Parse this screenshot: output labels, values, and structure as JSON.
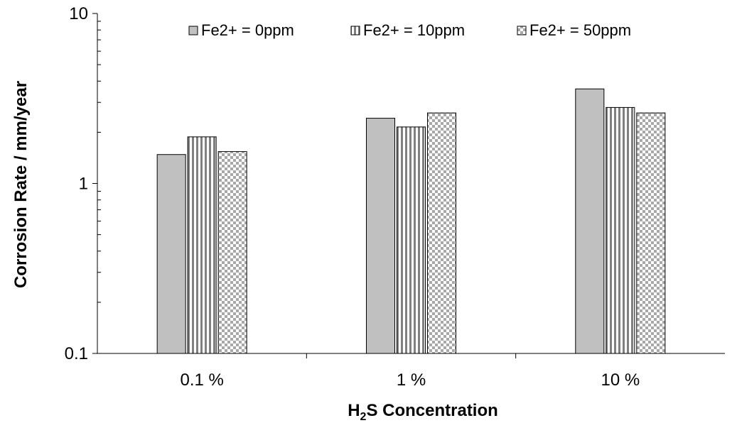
{
  "chart_data": {
    "type": "bar",
    "title": "",
    "xlabel": {
      "main": "H",
      "sub": "2",
      "rest": "S Concentration"
    },
    "ylabel": "Corrosion Rate / mm/year",
    "yscale": "log",
    "ylim": [
      0.1,
      10
    ],
    "yticks": [
      {
        "value": 0.1,
        "label": "0.1"
      },
      {
        "value": 1,
        "label": "1"
      },
      {
        "value": 10,
        "label": "10"
      }
    ],
    "categories": [
      "0.1 %",
      "1 %",
      "10 %"
    ],
    "series": [
      {
        "name": "Fe2+ = 0ppm",
        "pattern": "solid-gray",
        "values": [
          1.48,
          2.42,
          3.6
        ]
      },
      {
        "name": "Fe2+ = 10ppm",
        "pattern": "vertical-stripe",
        "values": [
          1.88,
          2.15,
          2.8
        ]
      },
      {
        "name": "Fe2+ = 50ppm",
        "pattern": "checker",
        "values": [
          1.54,
          2.6,
          2.6
        ]
      }
    ],
    "legend_position": "top-center",
    "grid": false,
    "colors": {
      "gray": "#c0c0c0",
      "stroke": "#000000"
    }
  }
}
